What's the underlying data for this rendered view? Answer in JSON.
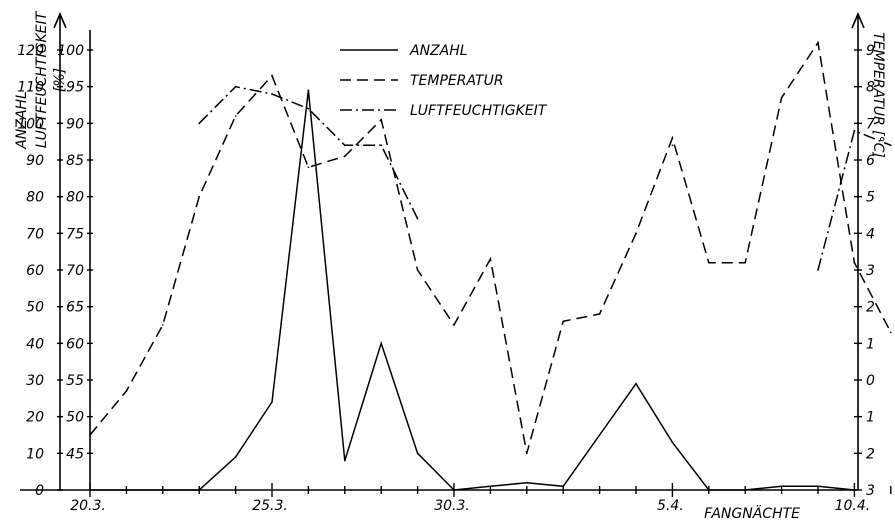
{
  "chart_data": {
    "type": "line",
    "xlabel": "FANGNÄCHTE",
    "x": [
      "20.3.",
      "21.3.",
      "22.3.",
      "23.3.",
      "24.3.",
      "25.3.",
      "26.3.",
      "27.3.",
      "28.3.",
      "29.3.",
      "30.3.",
      "31.3.",
      "1.4.",
      "2.4.",
      "3.4.",
      "4.4.",
      "5.4.",
      "6.4.",
      "7.4.",
      "8.4.",
      "9.4.",
      "10.4.",
      "11.4."
    ],
    "x_ticklabels": [
      "20.3.",
      "25.3.",
      "30.3.",
      "5.4.",
      "10.4."
    ],
    "axes": {
      "anzahl": {
        "label": "ANZAHL",
        "ylim": [
          0,
          120
        ],
        "ticks": [
          "0",
          "10",
          "20",
          "30",
          "40",
          "50",
          "60",
          "70",
          "80",
          "90",
          "100",
          "110",
          "120"
        ]
      },
      "luftfeuchtigkeit": {
        "label": "LUFTFEUCHTIGKEIT",
        "unit": "[%]",
        "ylim": [
          40,
          100
        ],
        "ticks": [
          "45",
          "50",
          "55",
          "60",
          "65",
          "70",
          "75",
          "80",
          "85",
          "90",
          "95",
          "100"
        ]
      },
      "temperatur": {
        "label": "TEMPERATUR [°C]",
        "ylim": [
          -3,
          9
        ],
        "ticks": [
          "3",
          "2",
          "1",
          "0",
          "1",
          "2",
          "3",
          "4",
          "5",
          "6",
          "7",
          "8",
          "9"
        ]
      }
    },
    "legend": {
      "position": "top-center",
      "entries": [
        "ANZAHL",
        "TEMPERATUR",
        "LUFTFEUCHTIGKEIT"
      ]
    },
    "series": [
      {
        "name": "ANZAHL",
        "axis": "anzahl",
        "style": "solid",
        "values": [
          0,
          0,
          0,
          0,
          9,
          24,
          109,
          8,
          40,
          10,
          0,
          1,
          2,
          1,
          15,
          29,
          13,
          0,
          0,
          1,
          1,
          0,
          null
        ]
      },
      {
        "name": "TEMPERATUR",
        "axis": "temperatur",
        "style": "dashed",
        "values": [
          -1.5,
          -0.3,
          1.5,
          5,
          7.2,
          8.3,
          5.8,
          6.1,
          7.1,
          3,
          1.5,
          3.3,
          -2,
          1.6,
          1.8,
          4,
          6.6,
          3.2,
          3.2,
          7.7,
          9.2,
          3.2,
          1.3
        ]
      },
      {
        "name": "LUFTFEUCHTIGKEIT",
        "axis": "luftfeuchtigkeit",
        "style": "dash-dot",
        "values": [
          null,
          null,
          null,
          90,
          95,
          94,
          92,
          87,
          87,
          77,
          null,
          null,
          null,
          null,
          null,
          null,
          87,
          null,
          null,
          null,
          70,
          89,
          87
        ]
      }
    ],
    "grid": false
  }
}
